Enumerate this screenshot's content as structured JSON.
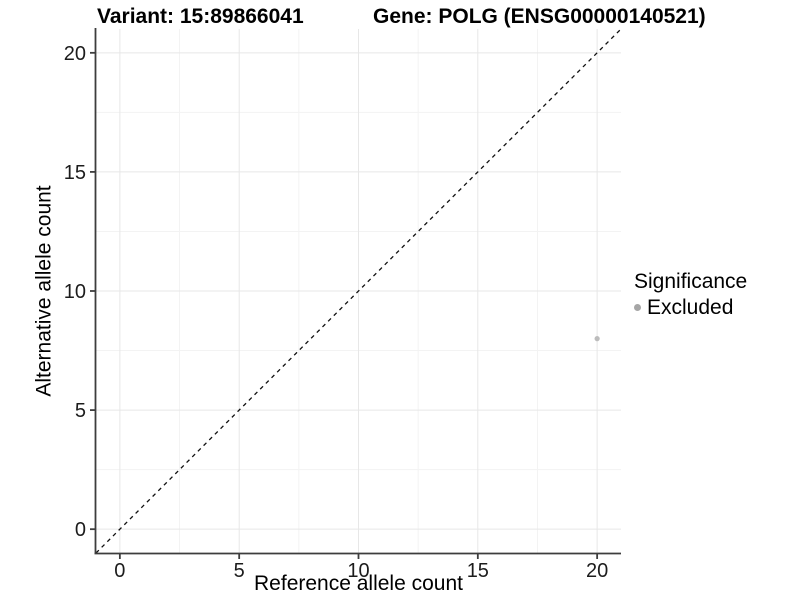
{
  "titles": {
    "variant": "Variant: 15:89866041",
    "gene": "Gene: POLG (ENSG00000140521)"
  },
  "chart_data": {
    "type": "scatter",
    "title": "Variant: 15:89866041  /  Gene: POLG (ENSG00000140521)",
    "xlabel": "Reference allele count",
    "ylabel": "Alternative allele count",
    "xlim": [
      -1,
      21
    ],
    "ylim": [
      -1,
      21
    ],
    "x_major_ticks": [
      0,
      5,
      10,
      15,
      20
    ],
    "y_major_ticks": [
      0,
      5,
      10,
      15,
      20
    ],
    "x_minor_gridlines": [
      2.5,
      7.5,
      12.5,
      17.5
    ],
    "y_minor_gridlines": [
      2.5,
      7.5,
      12.5,
      17.5
    ],
    "grid": true,
    "identity_line": {
      "slope": 1,
      "intercept": 0,
      "style": "dashed",
      "color": "#111111"
    },
    "series": [
      {
        "name": "Excluded",
        "color": "#bcbcbc",
        "points": [
          {
            "x": 20,
            "y": 8
          }
        ]
      }
    ],
    "legend": {
      "title": "Significance",
      "position": "right",
      "items": [
        {
          "label": "Excluded",
          "color": "#a6a6a6"
        }
      ]
    },
    "style": {
      "panel_background": "#ffffff",
      "grid_major_color": "#e7e7e7",
      "grid_minor_color": "#f3f3f3",
      "axis_line_color": "#3d3d3d",
      "tick_label_color": "#1c1c1c",
      "title_color": "#000000"
    }
  }
}
